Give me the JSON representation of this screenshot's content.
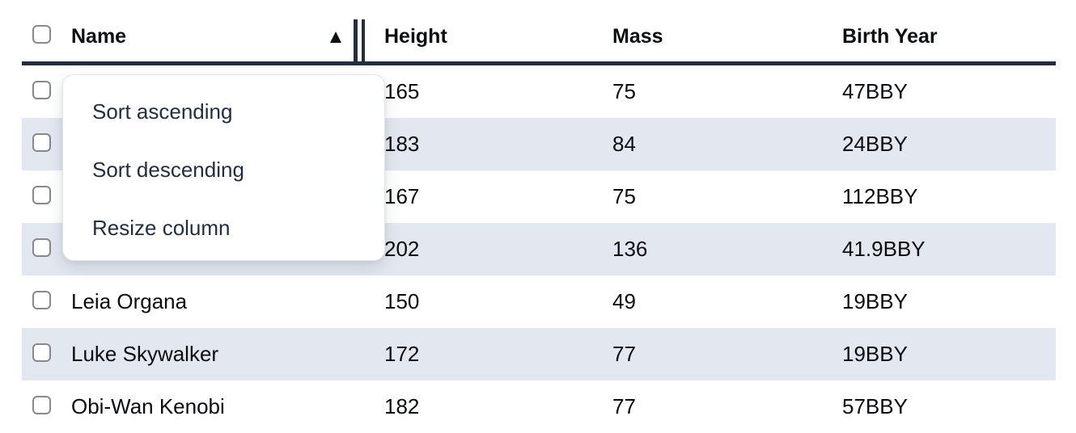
{
  "table": {
    "columns": [
      {
        "label": "Name",
        "sort": "ascending"
      },
      {
        "label": "Height"
      },
      {
        "label": "Mass"
      },
      {
        "label": "Birth Year"
      }
    ],
    "rows": [
      {
        "name": "",
        "height": "165",
        "mass": "75",
        "birth_year": "47BBY"
      },
      {
        "name": "",
        "height": "183",
        "mass": "84",
        "birth_year": "24BBY"
      },
      {
        "name": "",
        "height": "167",
        "mass": "75",
        "birth_year": "112BBY"
      },
      {
        "name": "",
        "height": "202",
        "mass": "136",
        "birth_year": "41.9BBY"
      },
      {
        "name": "Leia Organa",
        "height": "150",
        "mass": "49",
        "birth_year": "19BBY"
      },
      {
        "name": "Luke Skywalker",
        "height": "172",
        "mass": "77",
        "birth_year": "19BBY"
      },
      {
        "name": "Obi-Wan Kenobi",
        "height": "182",
        "mass": "77",
        "birth_year": "57BBY"
      }
    ]
  },
  "context_menu": {
    "items": [
      {
        "label": "Sort ascending"
      },
      {
        "label": "Sort descending"
      },
      {
        "label": "Resize column"
      }
    ]
  },
  "icons": {
    "sort_ascending_indicator": "▲"
  },
  "colors": {
    "header_border": "#232d3c",
    "row_stripe": "#e3e7ef",
    "body_text": "#0b0c0f",
    "menu_text": "#252e3d",
    "checkbox_border": "#85888e"
  }
}
